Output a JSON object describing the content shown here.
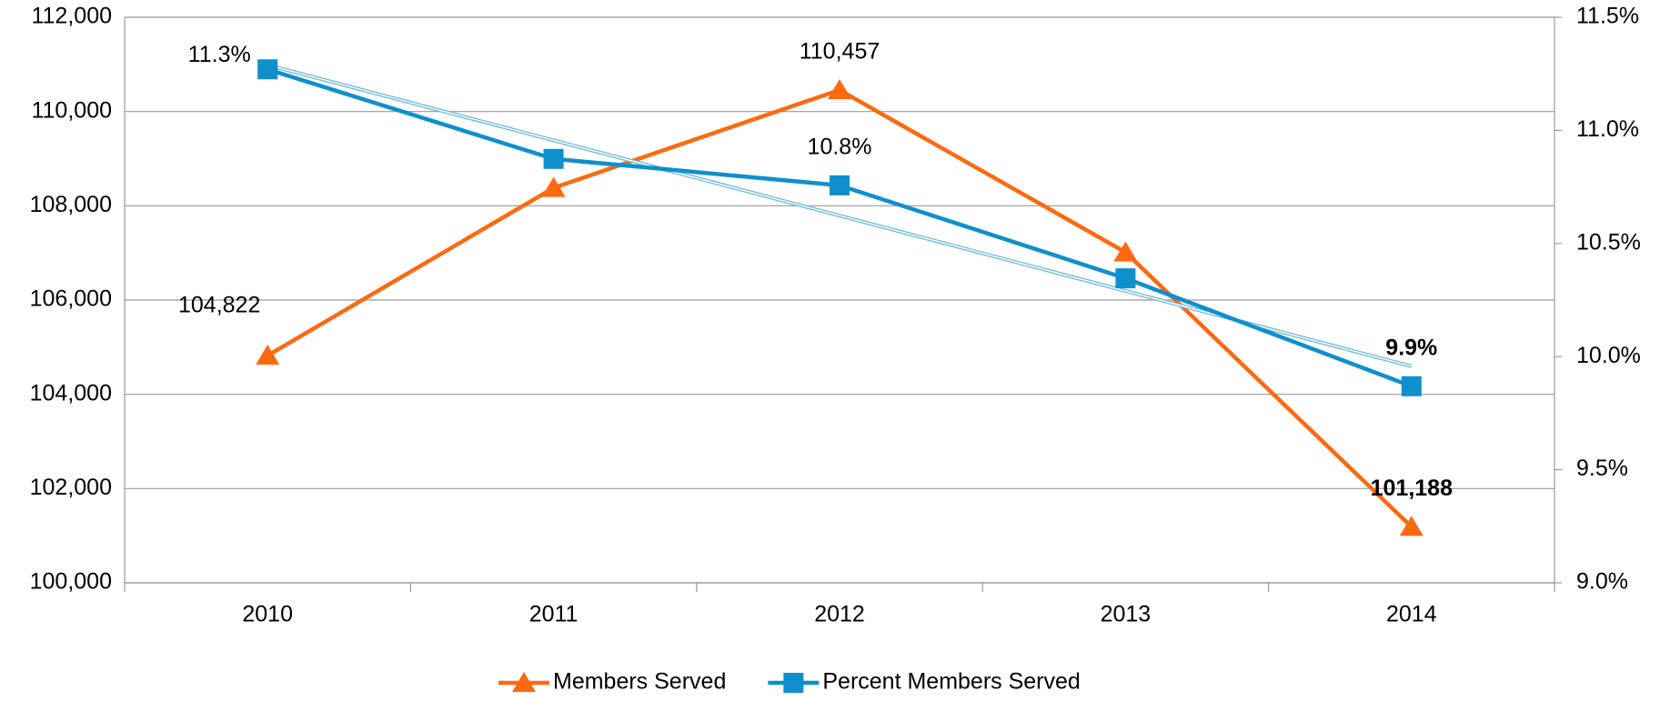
{
  "chart_data": {
    "type": "line",
    "categories": [
      "2010",
      "2011",
      "2012",
      "2013",
      "2014"
    ],
    "series": [
      {
        "name": "Members Served",
        "color": "#ff6a10",
        "marker": "triangle",
        "values": [
          104822,
          108380,
          110457,
          107013,
          101188
        ],
        "value_labels": [
          "104,822",
          null,
          "110,457",
          null,
          "101,188"
        ]
      },
      {
        "name": "Percent Members Served",
        "color": "#0f8fcc",
        "marker": "square",
        "axis": "y2",
        "trendline": "linear",
        "values": [
          11.27,
          10.874,
          10.757,
          10.346,
          9.869
        ],
        "value_labels": [
          "11.3%",
          null,
          "10.8%",
          null,
          "9.9%"
        ]
      }
    ],
    "ylim": [
      100000,
      112000
    ],
    "yticks": [
      {
        "value": 100000,
        "label": "100,000"
      },
      {
        "value": 102000,
        "label": "102,000"
      },
      {
        "value": 104000,
        "label": "104,000"
      },
      {
        "value": 106000,
        "label": "106,000"
      },
      {
        "value": 108000,
        "label": "108,000"
      },
      {
        "value": 110000,
        "label": "110,000"
      },
      {
        "value": 112000,
        "label": "112,000"
      }
    ],
    "y2lim": [
      9.0,
      11.5
    ],
    "y2ticks": [
      {
        "value": 9.0,
        "label": "9.0%"
      },
      {
        "value": 9.5,
        "label": "9.5%"
      },
      {
        "value": 10.0,
        "label": "10.0%"
      },
      {
        "value": 10.5,
        "label": "10.5%"
      },
      {
        "value": 11.0,
        "label": "11.0%"
      },
      {
        "value": 11.5,
        "label": "11.5%"
      }
    ],
    "grid": true,
    "legend": "bottom"
  }
}
